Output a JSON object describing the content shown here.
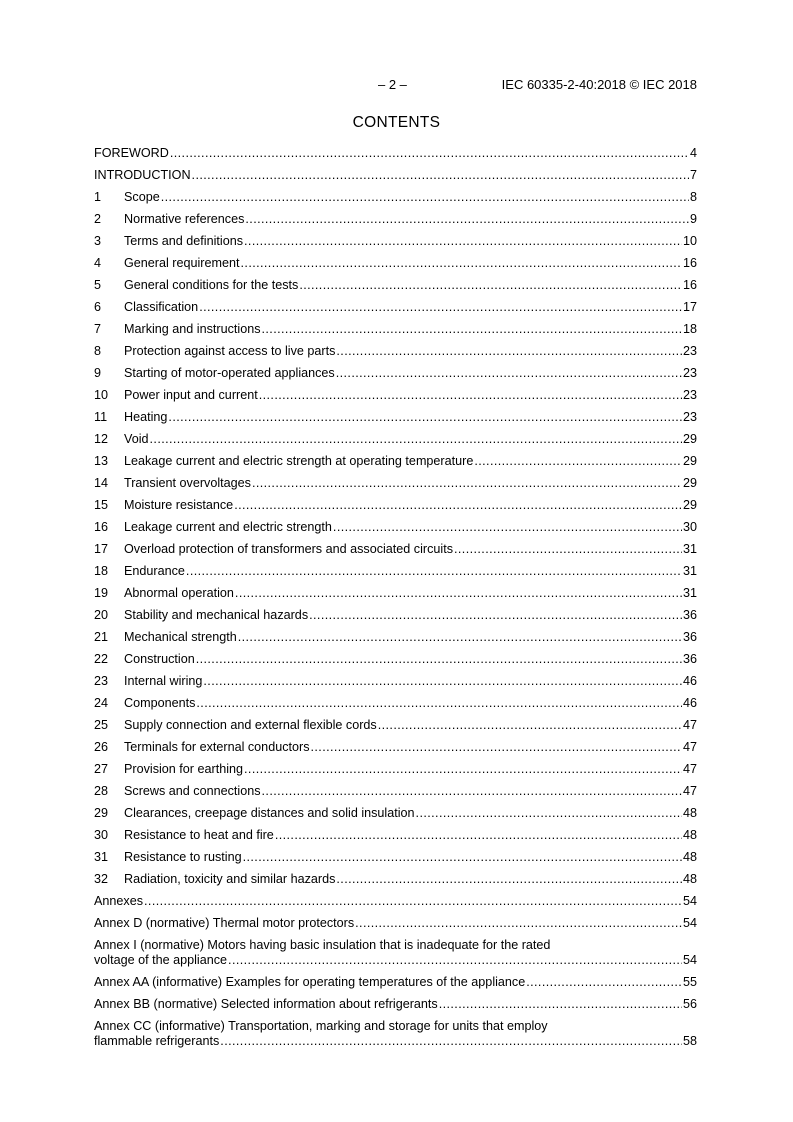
{
  "header": {
    "page_number": "– 2 –",
    "standard": "IEC 60335-2-40:2018 © IEC 2018"
  },
  "title": "CONTENTS",
  "entries": [
    {
      "num": "",
      "lines": [
        "FOREWORD"
      ],
      "page": "4"
    },
    {
      "num": "",
      "lines": [
        "INTRODUCTION"
      ],
      "page": "7"
    },
    {
      "num": "1",
      "lines": [
        "Scope"
      ],
      "page": "8"
    },
    {
      "num": "2",
      "lines": [
        "Normative references"
      ],
      "page": "9"
    },
    {
      "num": "3",
      "lines": [
        "Terms and definitions"
      ],
      "page": "10"
    },
    {
      "num": "4",
      "lines": [
        "General requirement"
      ],
      "page": "16"
    },
    {
      "num": "5",
      "lines": [
        "General conditions for the tests"
      ],
      "page": "16"
    },
    {
      "num": "6",
      "lines": [
        "Classification"
      ],
      "page": "17"
    },
    {
      "num": "7",
      "lines": [
        "Marking and instructions"
      ],
      "page": "18"
    },
    {
      "num": "8",
      "lines": [
        "Protection against access to live parts"
      ],
      "page": "23"
    },
    {
      "num": "9",
      "lines": [
        "Starting of motor-operated appliances"
      ],
      "page": "23"
    },
    {
      "num": "10",
      "lines": [
        "Power input and current"
      ],
      "page": "23"
    },
    {
      "num": "11",
      "lines": [
        "Heating"
      ],
      "page": "23"
    },
    {
      "num": "12",
      "lines": [
        "Void"
      ],
      "page": "29"
    },
    {
      "num": "13",
      "lines": [
        "Leakage current and electric strength at operating temperature"
      ],
      "page": "29"
    },
    {
      "num": "14",
      "lines": [
        "Transient overvoltages"
      ],
      "page": "29"
    },
    {
      "num": "15",
      "lines": [
        "Moisture resistance"
      ],
      "page": "29"
    },
    {
      "num": "16",
      "lines": [
        "Leakage current and electric strength"
      ],
      "page": "30"
    },
    {
      "num": "17",
      "lines": [
        "Overload protection of transformers and associated circuits"
      ],
      "page": "31"
    },
    {
      "num": "18",
      "lines": [
        "Endurance"
      ],
      "page": "31"
    },
    {
      "num": "19",
      "lines": [
        "Abnormal operation"
      ],
      "page": "31"
    },
    {
      "num": "20",
      "lines": [
        "Stability and mechanical hazards"
      ],
      "page": "36"
    },
    {
      "num": "21",
      "lines": [
        "Mechanical strength"
      ],
      "page": "36"
    },
    {
      "num": "22",
      "lines": [
        "Construction"
      ],
      "page": "36"
    },
    {
      "num": "23",
      "lines": [
        "Internal wiring"
      ],
      "page": "46"
    },
    {
      "num": "24",
      "lines": [
        "Components"
      ],
      "page": "46"
    },
    {
      "num": "25",
      "lines": [
        "Supply connection and external flexible cords"
      ],
      "page": "47"
    },
    {
      "num": "26",
      "lines": [
        "Terminals for external conductors"
      ],
      "page": "47"
    },
    {
      "num": "27",
      "lines": [
        "Provision for earthing"
      ],
      "page": "47"
    },
    {
      "num": "28",
      "lines": [
        "Screws and connections"
      ],
      "page": "47"
    },
    {
      "num": "29",
      "lines": [
        "Clearances, creepage distances and solid insulation"
      ],
      "page": "48"
    },
    {
      "num": "30",
      "lines": [
        "Resistance to heat and fire"
      ],
      "page": "48"
    },
    {
      "num": "31",
      "lines": [
        "Resistance to rusting"
      ],
      "page": "48"
    },
    {
      "num": "32",
      "lines": [
        "Radiation, toxicity and similar hazards"
      ],
      "page": "48"
    },
    {
      "num": "",
      "lines": [
        "Annexes"
      ],
      "page": "54"
    },
    {
      "num": "",
      "lines": [
        "Annex D (normative)  Thermal motor protectors"
      ],
      "page": "54"
    },
    {
      "num": "",
      "lines": [
        "Annex I (normative)  Motors having basic insulation that is inadequate for the rated",
        "voltage of the appliance"
      ],
      "page": "54"
    },
    {
      "num": "",
      "lines": [
        "Annex AA (informative)  Examples for operating temperatures of the appliance"
      ],
      "page": "55"
    },
    {
      "num": "",
      "lines": [
        "Annex BB (normative)  Selected information about refrigerants"
      ],
      "page": "56"
    },
    {
      "num": "",
      "lines": [
        "Annex CC (informative)  Transportation, marking and storage for units that employ",
        "flammable refrigerants"
      ],
      "page": "58"
    }
  ]
}
